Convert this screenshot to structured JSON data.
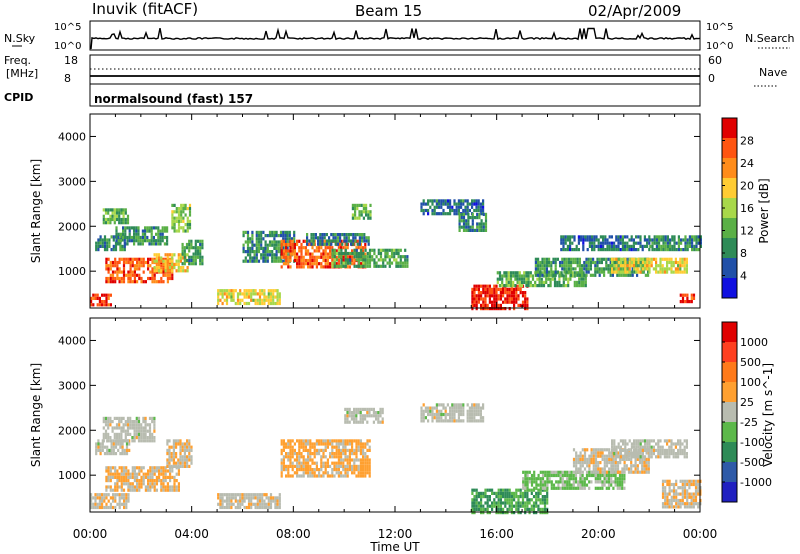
{
  "header": {
    "station": "Inuvik (fitACF)",
    "beam": "Beam 15",
    "date": "02/Apr/2009"
  },
  "strip_panels": {
    "nsky_label": "N.Sky",
    "nsky_ticks": [
      "10^5",
      "10^0"
    ],
    "nsearch_label": "N.Search",
    "nsearch_ticks": [
      "10^5",
      "10^0"
    ],
    "freq_label_line1": "Freq.",
    "freq_label_line2": "[MHz]",
    "freq_ticks": [
      "18",
      "8"
    ],
    "nave_label": "Nave",
    "nave_ticks": [
      "60",
      "0"
    ],
    "cpid_label": "CPID",
    "cpid_value": "normalsound (fast) 157"
  },
  "colors": {
    "power_scale": [
      "#1010e0",
      "#2050a8",
      "#2e8b57",
      "#5ab046",
      "#a8d84a",
      "#ffcc33",
      "#ff8c1a",
      "#ff5511",
      "#e00000"
    ],
    "velocity_scale": [
      "#2020c0",
      "#2e5aa8",
      "#2e8b57",
      "#5cb84a",
      "#b8bcb0",
      "#ffa030",
      "#ff7a1a",
      "#ff4020",
      "#e00000"
    ]
  },
  "chart_data": [
    {
      "type": "heatmap",
      "title": "",
      "xlabel": "Time UT",
      "ylabel": "Slant Range [km]",
      "xlim": [
        "00:00",
        "24:00"
      ],
      "ylim": [
        180,
        4500
      ],
      "x_ticks": [
        "00:00",
        "04:00",
        "08:00",
        "12:00",
        "16:00",
        "20:00",
        "00:00"
      ],
      "y_ticks": [
        "1000",
        "2000",
        "3000",
        "4000"
      ],
      "colorbar_label": "Power [dB]",
      "colorbar_ticks": [
        "28",
        "24",
        "20",
        "16",
        "12",
        "8",
        "4"
      ],
      "scale_range": [
        0,
        32
      ],
      "regions": [
        {
          "t": [
            0.2,
            1.4
          ],
          "r": [
            1500,
            1800
          ],
          "v": 8
        },
        {
          "t": [
            0.5,
            1.5
          ],
          "r": [
            2100,
            2400
          ],
          "v": 12
        },
        {
          "t": [
            0.6,
            3.2
          ],
          "r": [
            800,
            1300
          ],
          "v": 26
        },
        {
          "t": [
            1.0,
            3.0
          ],
          "r": [
            1600,
            2000
          ],
          "v": 10
        },
        {
          "t": [
            0.0,
            0.8
          ],
          "r": [
            250,
            500
          ],
          "v": 28
        },
        {
          "t": [
            2.5,
            3.8
          ],
          "r": [
            1000,
            1400
          ],
          "v": 20
        },
        {
          "t": [
            3.2,
            3.9
          ],
          "r": [
            1900,
            2500
          ],
          "v": 14
        },
        {
          "t": [
            3.6,
            4.4
          ],
          "r": [
            1200,
            1700
          ],
          "v": 10
        },
        {
          "t": [
            5.0,
            7.5
          ],
          "r": [
            300,
            600
          ],
          "v": 18
        },
        {
          "t": [
            6.0,
            8.0
          ],
          "r": [
            1200,
            1900
          ],
          "v": 9
        },
        {
          "t": [
            7.5,
            10.8
          ],
          "r": [
            1100,
            1700
          ],
          "v": 26
        },
        {
          "t": [
            8.5,
            11.0
          ],
          "r": [
            1600,
            1850
          ],
          "v": 8
        },
        {
          "t": [
            9.5,
            12.5
          ],
          "r": [
            1100,
            1500
          ],
          "v": 11
        },
        {
          "t": [
            10.3,
            11.0
          ],
          "r": [
            2200,
            2500
          ],
          "v": 12
        },
        {
          "t": [
            13.0,
            15.5
          ],
          "r": [
            2300,
            2600
          ],
          "v": 7
        },
        {
          "t": [
            14.5,
            15.6
          ],
          "r": [
            1900,
            2300
          ],
          "v": 9
        },
        {
          "t": [
            15.0,
            17.2
          ],
          "r": [
            180,
            700
          ],
          "v": 30
        },
        {
          "t": [
            16.0,
            19.5
          ],
          "r": [
            700,
            1000
          ],
          "v": 12
        },
        {
          "t": [
            17.5,
            22.0
          ],
          "r": [
            900,
            1300
          ],
          "v": 10
        },
        {
          "t": [
            18.5,
            22.0
          ],
          "r": [
            1500,
            1800
          ],
          "v": 7
        },
        {
          "t": [
            20.5,
            23.5
          ],
          "r": [
            1000,
            1300
          ],
          "v": 18
        },
        {
          "t": [
            22.0,
            24.0
          ],
          "r": [
            1500,
            1800
          ],
          "v": 9
        },
        {
          "t": [
            23.2,
            23.8
          ],
          "r": [
            300,
            500
          ],
          "v": 28
        }
      ]
    },
    {
      "type": "heatmap",
      "title": "",
      "xlabel": "Time UT",
      "ylabel": "Slant Range [km]",
      "xlim": [
        "00:00",
        "24:00"
      ],
      "ylim": [
        180,
        4500
      ],
      "x_ticks": [
        "00:00",
        "04:00",
        "08:00",
        "12:00",
        "16:00",
        "20:00",
        "00:00"
      ],
      "y_ticks": [
        "1000",
        "2000",
        "3000",
        "4000"
      ],
      "colorbar_label": "Velocity [m s^-1]",
      "colorbar_ticks": [
        "1000",
        "500",
        "100",
        "25",
        "-25",
        "-100",
        "-500",
        "-1000"
      ],
      "scale_range": [
        -1200,
        1200
      ],
      "regions": [
        {
          "t": [
            0.2,
            1.5
          ],
          "r": [
            1500,
            1800
          ],
          "v": 0
        },
        {
          "t": [
            0.6,
            3.5
          ],
          "r": [
            700,
            1200
          ],
          "v": 150
        },
        {
          "t": [
            0.5,
            2.5
          ],
          "r": [
            1800,
            2300
          ],
          "v": 0
        },
        {
          "t": [
            0.0,
            1.5
          ],
          "r": [
            250,
            600
          ],
          "v": 60
        },
        {
          "t": [
            3.0,
            4.0
          ],
          "r": [
            1200,
            1800
          ],
          "v": 100
        },
        {
          "t": [
            5.0,
            7.5
          ],
          "r": [
            300,
            600
          ],
          "v": 60
        },
        {
          "t": [
            7.5,
            11.0
          ],
          "r": [
            1000,
            1800
          ],
          "v": 200
        },
        {
          "t": [
            10.0,
            11.5
          ],
          "r": [
            2200,
            2500
          ],
          "v": 0
        },
        {
          "t": [
            13.0,
            15.5
          ],
          "r": [
            2200,
            2600
          ],
          "v": 0
        },
        {
          "t": [
            15.0,
            18.0
          ],
          "r": [
            200,
            700
          ],
          "v": -400
        },
        {
          "t": [
            17.0,
            21.0
          ],
          "r": [
            700,
            1100
          ],
          "v": -200
        },
        {
          "t": [
            19.0,
            22.0
          ],
          "r": [
            1100,
            1600
          ],
          "v": 60
        },
        {
          "t": [
            20.5,
            23.5
          ],
          "r": [
            1400,
            1800
          ],
          "v": 0
        },
        {
          "t": [
            22.5,
            24.0
          ],
          "r": [
            300,
            900
          ],
          "v": 100
        }
      ]
    }
  ]
}
